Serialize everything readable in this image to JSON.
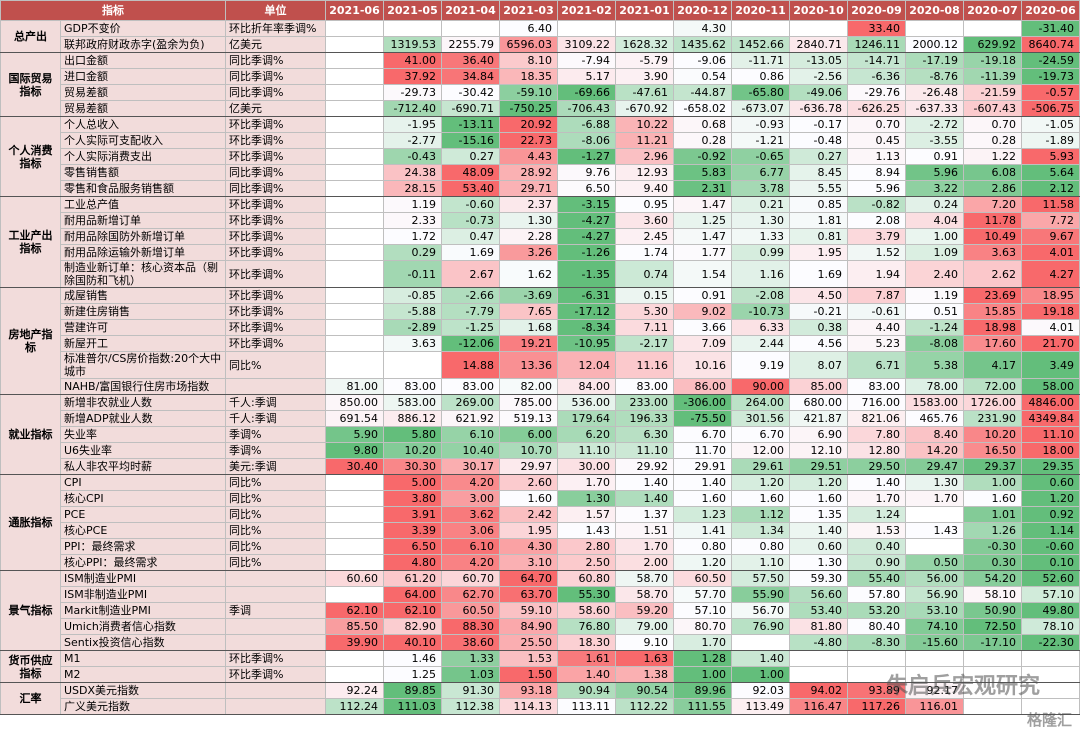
{
  "header": {
    "indicator": "指标",
    "unit": "单位",
    "months": [
      "2021-06",
      "2021-05",
      "2021-04",
      "2021-03",
      "2021-02",
      "2021-01",
      "2020-12",
      "2020-11",
      "2020-10",
      "2020-09",
      "2020-08",
      "2020-07",
      "2020-06"
    ]
  },
  "groups": [
    {
      "name": "总产出",
      "rows": [
        {
          "name": "GDP不变价",
          "unit": "环比折年率季调%",
          "values": [
            null,
            null,
            null,
            "6.40",
            null,
            null,
            "4.30",
            null,
            null,
            "33.40",
            null,
            null,
            "-31.40"
          ]
        },
        {
          "name": "联邦政府财政赤字(盈余为负)",
          "unit": "亿美元",
          "values": [
            null,
            "1319.53",
            "2255.79",
            "6596.03",
            "3109.22",
            "1628.32",
            "1435.62",
            "1452.66",
            "2840.71",
            "1246.11",
            "2000.12",
            "629.92",
            "8640.74"
          ]
        }
      ]
    },
    {
      "name": "国际贸易指标",
      "rows": [
        {
          "name": "出口金额",
          "unit": "同比季调%",
          "values": [
            null,
            "41.00",
            "36.40",
            "8.10",
            "-7.94",
            "-5.79",
            "-9.06",
            "-11.71",
            "-13.05",
            "-14.71",
            "-17.19",
            "-19.18",
            "-24.59"
          ]
        },
        {
          "name": "进口金额",
          "unit": "同比季调%",
          "values": [
            null,
            "37.92",
            "34.84",
            "18.35",
            "5.17",
            "3.90",
            "0.54",
            "0.86",
            "-2.56",
            "-6.36",
            "-8.76",
            "-11.39",
            "-19.73"
          ]
        },
        {
          "name": "贸易差额",
          "unit": "同比季调%",
          "values": [
            null,
            "-29.73",
            "-30.42",
            "-59.10",
            "-69.66",
            "-47.61",
            "-44.87",
            "-65.80",
            "-49.06",
            "-29.76",
            "-26.48",
            "-21.59",
            "-0.57"
          ]
        },
        {
          "name": "贸易差额",
          "unit": "亿美元",
          "values": [
            null,
            "-712.40",
            "-690.71",
            "-750.25",
            "-706.43",
            "-670.92",
            "-658.02",
            "-673.07",
            "-636.78",
            "-626.25",
            "-637.33",
            "-607.43",
            "-506.75"
          ]
        }
      ]
    },
    {
      "name": "个人消费指标",
      "rows": [
        {
          "name": "个人总收入",
          "unit": "环比季调%",
          "values": [
            null,
            "-1.95",
            "-13.11",
            "20.92",
            "-6.88",
            "10.22",
            "0.68",
            "-0.93",
            "-0.17",
            "0.70",
            "-2.72",
            "0.70",
            "-1.05"
          ]
        },
        {
          "name": "个人实际可支配收入",
          "unit": "环比季调%",
          "values": [
            null,
            "-2.77",
            "-15.16",
            "22.73",
            "-8.06",
            "11.21",
            "0.28",
            "-1.21",
            "-0.48",
            "0.45",
            "-3.55",
            "0.28",
            "-1.89"
          ]
        },
        {
          "name": "个人实际消费支出",
          "unit": "环比季调%",
          "values": [
            null,
            "-0.43",
            "0.27",
            "4.43",
            "-1.27",
            "2.96",
            "-0.92",
            "-0.65",
            "0.27",
            "1.13",
            "0.91",
            "1.22",
            "5.93"
          ]
        },
        {
          "name": "零售销售额",
          "unit": "同比季调%",
          "values": [
            null,
            "24.38",
            "48.09",
            "28.92",
            "9.76",
            "12.93",
            "5.83",
            "6.77",
            "8.45",
            "8.94",
            "5.96",
            "6.08",
            "5.64"
          ]
        },
        {
          "name": "零售和食品服务销售额",
          "unit": "同比季调%",
          "values": [
            null,
            "28.15",
            "53.40",
            "29.71",
            "6.50",
            "9.40",
            "2.31",
            "3.78",
            "5.55",
            "5.96",
            "3.22",
            "2.86",
            "2.12"
          ]
        }
      ]
    },
    {
      "name": "工业产出指标",
      "rows": [
        {
          "name": "工业总产值",
          "unit": "环比季调%",
          "values": [
            null,
            "1.19",
            "-0.60",
            "2.37",
            "-3.15",
            "0.95",
            "1.47",
            "0.21",
            "0.85",
            "-0.82",
            "0.24",
            "7.20",
            "11.58"
          ]
        },
        {
          "name": "耐用品新增订单",
          "unit": "环比季调%",
          "values": [
            null,
            "2.33",
            "-0.73",
            "1.30",
            "-4.27",
            "3.60",
            "1.25",
            "1.30",
            "1.81",
            "2.08",
            "4.04",
            "11.78",
            "7.72"
          ]
        },
        {
          "name": "耐用品除国防外新增订单",
          "unit": "环比季调%",
          "values": [
            null,
            "1.72",
            "0.47",
            "2.28",
            "-4.27",
            "2.45",
            "1.47",
            "1.33",
            "0.81",
            "3.79",
            "1.00",
            "10.49",
            "9.67"
          ]
        },
        {
          "name": "耐用品除运输外新增订单",
          "unit": "环比季调%",
          "values": [
            null,
            "0.29",
            "1.69",
            "3.26",
            "-1.26",
            "1.74",
            "1.77",
            "0.99",
            "1.95",
            "1.52",
            "1.09",
            "3.63",
            "4.01"
          ]
        },
        {
          "name": "制造业新订单：核心资本品（剔除国防和飞机）",
          "unit": "环比季调%",
          "values": [
            null,
            "-0.11",
            "2.67",
            "1.62",
            "-1.35",
            "0.74",
            "1.54",
            "1.16",
            "1.69",
            "1.94",
            "2.40",
            "2.62",
            "4.27"
          ]
        }
      ]
    },
    {
      "name": "房地产指标",
      "rows": [
        {
          "name": "成屋销售",
          "unit": "环比季调%",
          "values": [
            null,
            "-0.85",
            "-2.66",
            "-3.69",
            "-6.31",
            "0.15",
            "0.91",
            "-2.08",
            "4.50",
            "7.87",
            "1.19",
            "23.69",
            "18.95"
          ]
        },
        {
          "name": "新建住房销售",
          "unit": "环比季调%",
          "values": [
            null,
            "-5.88",
            "-7.79",
            "7.65",
            "-17.12",
            "5.30",
            "9.02",
            "-10.73",
            "-0.21",
            "-0.61",
            "0.51",
            "15.85",
            "19.18"
          ]
        },
        {
          "name": "营建许可",
          "unit": "环比季调%",
          "values": [
            null,
            "-2.89",
            "-1.25",
            "1.68",
            "-8.34",
            "7.11",
            "3.66",
            "6.33",
            "0.38",
            "4.40",
            "-1.24",
            "18.98",
            "4.01"
          ]
        },
        {
          "name": "新屋开工",
          "unit": "环比季调%",
          "values": [
            null,
            "3.63",
            "-12.06",
            "19.21",
            "-10.95",
            "-2.17",
            "7.09",
            "2.44",
            "4.56",
            "5.23",
            "-8.08",
            "17.60",
            "21.70"
          ]
        },
        {
          "name": "标准普尔/CS房价指数:20个大中城市",
          "unit": "同比%",
          "values": [
            null,
            null,
            "14.88",
            "13.36",
            "12.04",
            "11.16",
            "10.16",
            "9.19",
            "8.07",
            "6.71",
            "5.38",
            "4.17",
            "3.49"
          ]
        },
        {
          "name": "NAHB/富国银行住房市场指数",
          "unit": null,
          "values": [
            "81.00",
            "83.00",
            "83.00",
            "82.00",
            "84.00",
            "83.00",
            "86.00",
            "90.00",
            "85.00",
            "83.00",
            "78.00",
            "72.00",
            "58.00"
          ]
        }
      ]
    },
    {
      "name": "就业指标",
      "rows": [
        {
          "name": "新增非农就业人数",
          "unit": "千人:季调",
          "values": [
            "850.00",
            "583.00",
            "269.00",
            "785.00",
            "536.00",
            "233.00",
            "-306.00",
            "264.00",
            "680.00",
            "716.00",
            "1583.00",
            "1726.00",
            "4846.00"
          ]
        },
        {
          "name": "新增ADP就业人数",
          "unit": "千人:季调",
          "values": [
            "691.54",
            "886.12",
            "621.92",
            "519.13",
            "179.64",
            "196.33",
            "-75.50",
            "301.56",
            "421.87",
            "821.06",
            "465.76",
            "231.90",
            "4349.84"
          ]
        },
        {
          "name": "失业率",
          "unit": "季调%",
          "values": [
            "5.90",
            "5.80",
            "6.10",
            "6.00",
            "6.20",
            "6.30",
            "6.70",
            "6.70",
            "6.90",
            "7.80",
            "8.40",
            "10.20",
            "11.10"
          ]
        },
        {
          "name": "U6失业率",
          "unit": "季调%",
          "values": [
            "9.80",
            "10.20",
            "10.40",
            "10.70",
            "11.10",
            "11.10",
            "11.70",
            "12.00",
            "12.10",
            "12.80",
            "14.20",
            "16.50",
            "18.00"
          ]
        },
        {
          "name": "私人非农平均时薪",
          "unit": "美元:季调",
          "values": [
            "30.40",
            "30.30",
            "30.17",
            "29.97",
            "30.00",
            "29.92",
            "29.91",
            "29.61",
            "29.51",
            "29.50",
            "29.47",
            "29.37",
            "29.35"
          ]
        }
      ]
    },
    {
      "name": "通胀指标",
      "rows": [
        {
          "name": "CPI",
          "unit": "同比%",
          "values": [
            null,
            "5.00",
            "4.20",
            "2.60",
            "1.70",
            "1.40",
            "1.40",
            "1.20",
            "1.20",
            "1.40",
            "1.30",
            "1.00",
            "0.60"
          ]
        },
        {
          "name": "核心CPI",
          "unit": "同比%",
          "values": [
            null,
            "3.80",
            "3.00",
            "1.60",
            "1.30",
            "1.40",
            "1.60",
            "1.60",
            "1.60",
            "1.70",
            "1.70",
            "1.60",
            "1.20"
          ]
        },
        {
          "name": "PCE",
          "unit": "同比%",
          "values": [
            null,
            "3.91",
            "3.62",
            "2.42",
            "1.57",
            "1.37",
            "1.23",
            "1.12",
            "1.35",
            "1.24",
            null,
            "1.01",
            "0.92"
          ]
        },
        {
          "name": "核心PCE",
          "unit": "同比%",
          "values": [
            null,
            "3.39",
            "3.06",
            "1.95",
            "1.43",
            "1.51",
            "1.41",
            "1.34",
            "1.40",
            "1.53",
            "1.43",
            "1.26",
            "1.14"
          ]
        },
        {
          "name": "PPI：最终需求",
          "unit": "同比%",
          "values": [
            null,
            "6.50",
            "6.10",
            "4.30",
            "2.80",
            "1.70",
            "0.80",
            "0.80",
            "0.60",
            "0.40",
            null,
            "-0.30",
            "-0.60"
          ]
        },
        {
          "name": "核心PPI：最终需求",
          "unit": "同比%",
          "values": [
            null,
            "4.80",
            "4.20",
            "3.10",
            "2.50",
            "2.00",
            "1.20",
            "1.10",
            "1.30",
            "0.90",
            "0.50",
            "0.30",
            "0.10"
          ]
        }
      ]
    },
    {
      "name": "景气指标",
      "rows": [
        {
          "name": "ISM制造业PMI",
          "unit": null,
          "values": [
            "60.60",
            "61.20",
            "60.70",
            "64.70",
            "60.80",
            "58.70",
            "60.50",
            "57.50",
            "59.30",
            "55.40",
            "56.00",
            "54.20",
            "52.60"
          ]
        },
        {
          "name": "ISM非制造业PMI",
          "unit": null,
          "values": [
            null,
            "64.00",
            "62.70",
            "63.70",
            "55.30",
            "58.70",
            "57.70",
            "55.90",
            "56.60",
            "57.80",
            "56.90",
            "58.10",
            "57.10"
          ]
        },
        {
          "name": "Markit制造业PMI",
          "unit": "季调",
          "values": [
            "62.10",
            "62.10",
            "60.50",
            "59.10",
            "58.60",
            "59.20",
            "57.10",
            "56.70",
            "53.40",
            "53.20",
            "53.10",
            "50.90",
            "49.80"
          ]
        },
        {
          "name": "Umich消费者信心指数",
          "unit": null,
          "values": [
            "85.50",
            "82.90",
            "88.30",
            "84.90",
            "76.80",
            "79.00",
            "80.70",
            "76.90",
            "81.80",
            "80.40",
            "74.10",
            "72.50",
            "78.10"
          ]
        },
        {
          "name": "Sentix投资信心指数",
          "unit": null,
          "values": [
            "39.90",
            "40.10",
            "38.60",
            "25.50",
            "18.30",
            "9.10",
            "1.70",
            null,
            "-4.80",
            "-8.30",
            "-15.60",
            "-17.10",
            "-22.30"
          ]
        }
      ]
    },
    {
      "name": "货币供应指标",
      "rows": [
        {
          "name": "M1",
          "unit": "环比季调%",
          "values": [
            null,
            "1.46",
            "1.33",
            "1.53",
            "1.61",
            "1.63",
            "1.28",
            "1.40",
            null,
            null,
            null,
            null,
            null
          ]
        },
        {
          "name": "M2",
          "unit": "环比季调%",
          "values": [
            null,
            "1.25",
            "1.03",
            "1.50",
            "1.40",
            "1.38",
            "1.00",
            "1.00",
            null,
            null,
            null,
            null,
            null
          ]
        }
      ]
    },
    {
      "name": "汇率",
      "rows": [
        {
          "name": "USDX美元指数",
          "unit": null,
          "values": [
            "92.24",
            "89.85",
            "91.30",
            "93.18",
            "90.94",
            "90.54",
            "89.96",
            "92.03",
            "94.02",
            "93.89",
            "92.17",
            null,
            null
          ]
        },
        {
          "name": "广义美元指数",
          "unit": null,
          "values": [
            "112.24",
            "111.03",
            "112.38",
            "114.13",
            "113.11",
            "112.22",
            "111.55",
            "113.49",
            "116.47",
            "117.26",
            "116.01",
            null,
            null
          ]
        }
      ]
    }
  ],
  "watermark": [
    "朱启兵宏观研究",
    "格隆汇"
  ]
}
